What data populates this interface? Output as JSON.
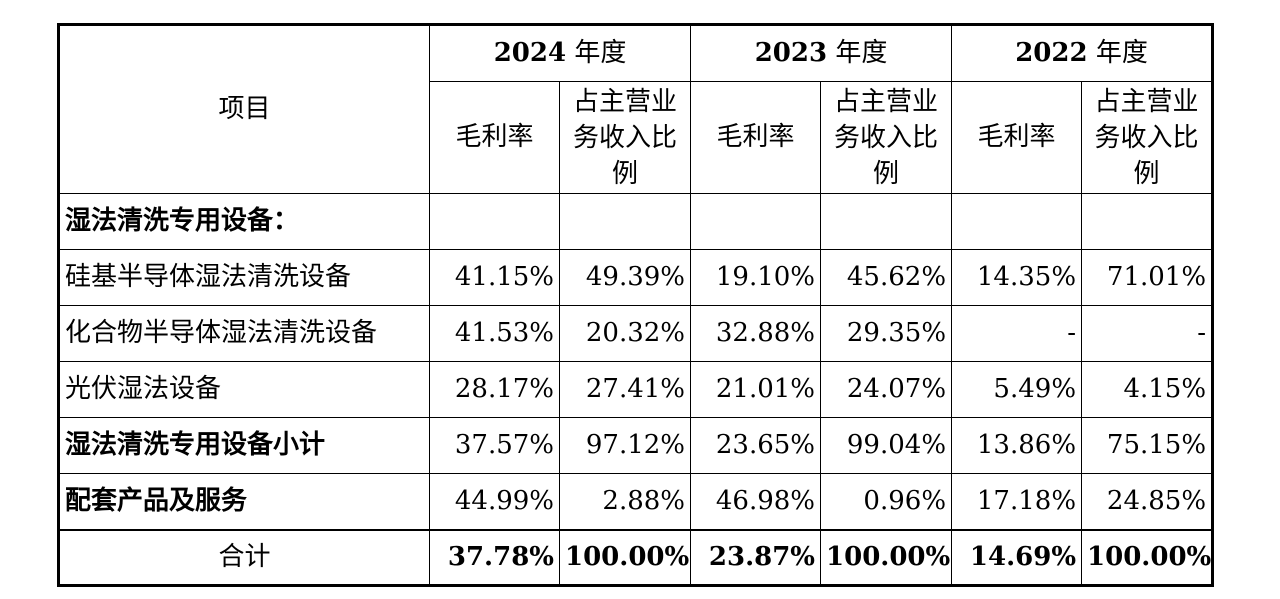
{
  "table": {
    "item_header": "项目",
    "years": [
      {
        "year": "2024",
        "suffix": " 年度"
      },
      {
        "year": "2023",
        "suffix": " 年度"
      },
      {
        "year": "2022",
        "suffix": " 年度"
      }
    ],
    "sub_headers": {
      "gross_margin": "毛利率",
      "share": "占主营业务收入比例"
    },
    "section_label": "湿法清洗专用设备：",
    "rows": [
      {
        "label": "硅基半导体湿法清洗设备",
        "values": [
          "41.15%",
          "49.39%",
          "19.10%",
          "45.62%",
          "14.35%",
          "71.01%"
        ]
      },
      {
        "label": "化合物半导体湿法清洗设备",
        "values": [
          "41.53%",
          "20.32%",
          "32.88%",
          "29.35%",
          "-",
          "-"
        ]
      },
      {
        "label": "光伏湿法设备",
        "values": [
          "28.17%",
          "27.41%",
          "21.01%",
          "24.07%",
          "5.49%",
          "4.15%"
        ]
      },
      {
        "label": "湿法清洗专用设备小计",
        "values": [
          "37.57%",
          "97.12%",
          "23.65%",
          "99.04%",
          "13.86%",
          "75.15%"
        ]
      },
      {
        "label": "配套产品及服务",
        "values": [
          "44.99%",
          "2.88%",
          "46.98%",
          "0.96%",
          "17.18%",
          "24.85%"
        ]
      }
    ],
    "total": {
      "label": "合计",
      "values": [
        "37.78%",
        "100.00%",
        "23.87%",
        "100.00%",
        "14.69%",
        "100.00%"
      ]
    }
  }
}
